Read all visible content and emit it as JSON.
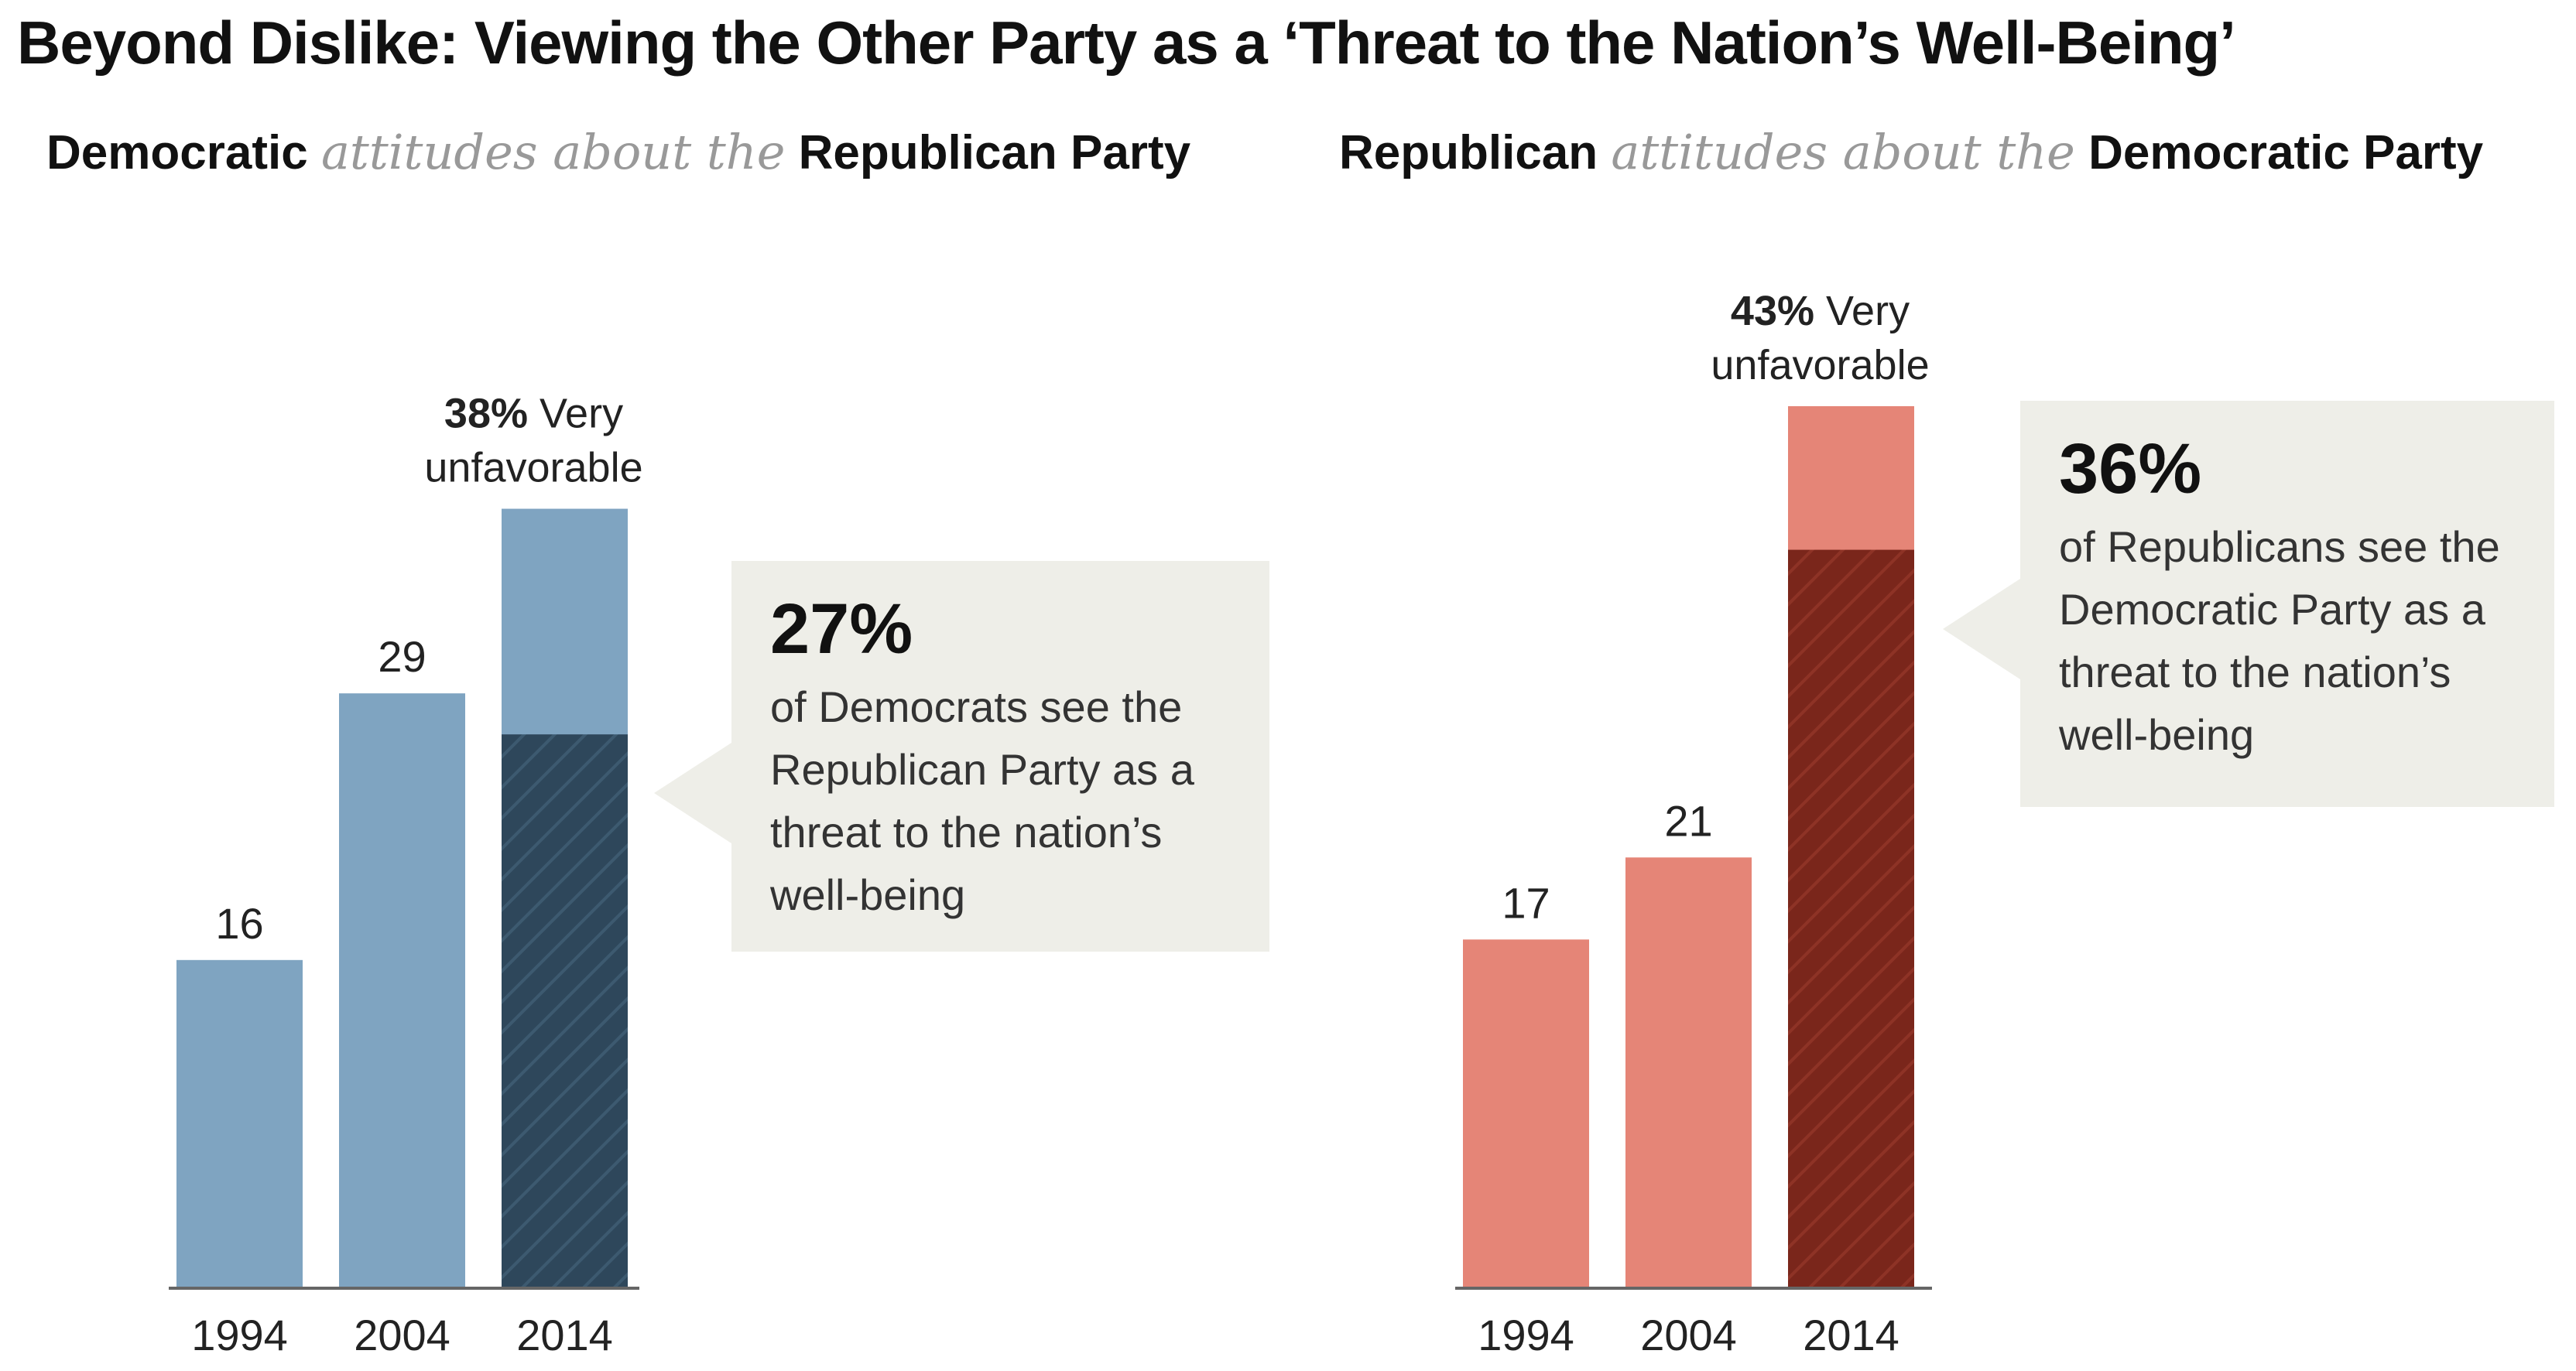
{
  "title": "Beyond Dislike: Viewing the Other Party as a ‘Threat to the Nation’s Well-Being’",
  "colors": {
    "dem_light": "#7fa4c1",
    "dem_dark": "#2e475b",
    "rep_light": "#e58577",
    "rep_dark": "#7a261b",
    "callout_bg": "#eeeee8",
    "axis": "#666666"
  },
  "panels": [
    {
      "subtitle": {
        "group": "Democratic",
        "connector": "attitudes about the",
        "target": "Republican Party"
      },
      "callout": {
        "percent": "27%",
        "text": "of Democrats see the Republican Party as a threat to the nation’s well-being"
      }
    },
    {
      "subtitle": {
        "group": "Republican",
        "connector": "attitudes about the",
        "target": "Democratic Party"
      },
      "callout": {
        "percent": "36%",
        "text": "of Republicans see the Democratic Party as a threat to the nation’s well-being"
      }
    }
  ],
  "chart_data": [
    {
      "type": "bar",
      "title": "Democratic attitudes about the Republican Party",
      "categories": [
        "1994",
        "2004",
        "2014"
      ],
      "series": [
        {
          "name": "Very unfavorable",
          "values": [
            16,
            29,
            38
          ]
        },
        {
          "name": "Threat to the nation's well-being",
          "values": [
            null,
            null,
            27
          ]
        }
      ],
      "data_labels": [
        "16",
        "29",
        ""
      ],
      "top_label": {
        "value": "38%",
        "text": "Very",
        "line2": "unfavorable"
      },
      "ylim": [
        0,
        45
      ],
      "xlabel": "",
      "ylabel": ""
    },
    {
      "type": "bar",
      "title": "Republican attitudes about the Democratic Party",
      "categories": [
        "1994",
        "2004",
        "2014"
      ],
      "series": [
        {
          "name": "Very unfavorable",
          "values": [
            17,
            21,
            43
          ]
        },
        {
          "name": "Threat to the nation's well-being",
          "values": [
            null,
            null,
            36
          ]
        }
      ],
      "data_labels": [
        "17",
        "21",
        ""
      ],
      "top_label": {
        "value": "43%",
        "text": "Very",
        "line2": "unfavorable"
      },
      "ylim": [
        0,
        45
      ],
      "xlabel": "",
      "ylabel": ""
    }
  ]
}
